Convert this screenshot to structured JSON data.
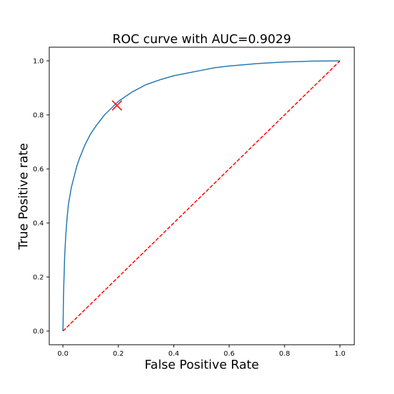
{
  "chart_data": {
    "type": "line",
    "title": "ROC curve with AUC=0.9029",
    "xlabel": "False Positive Rate",
    "ylabel": "True Positive rate",
    "xlim": [
      0,
      1
    ],
    "ylim": [
      0,
      1
    ],
    "x_ticks": [
      "0.0",
      "0.2",
      "0.4",
      "0.6",
      "0.8",
      "1.0"
    ],
    "y_ticks": [
      "0.0",
      "0.2",
      "0.4",
      "0.6",
      "0.8",
      "1.0"
    ],
    "grid": false,
    "legend": "none",
    "series": [
      {
        "style": "solid",
        "color": "#1f77b4",
        "x": [
          0.0,
          0.001,
          0.002,
          0.004,
          0.006,
          0.01,
          0.015,
          0.02,
          0.03,
          0.04,
          0.05,
          0.06,
          0.08,
          0.1,
          0.12,
          0.15,
          0.2,
          0.25,
          0.3,
          0.35,
          0.4,
          0.45,
          0.5,
          0.55,
          0.6,
          0.7,
          0.8,
          0.9,
          1.0
        ],
        "y": [
          0.0,
          0.05,
          0.13,
          0.2,
          0.27,
          0.35,
          0.42,
          0.47,
          0.53,
          0.57,
          0.61,
          0.64,
          0.69,
          0.73,
          0.76,
          0.8,
          0.85,
          0.885,
          0.912,
          0.93,
          0.945,
          0.955,
          0.965,
          0.975,
          0.981,
          0.99,
          0.996,
          0.999,
          1.0
        ]
      },
      {
        "style": "dashed",
        "color": "#ff0000",
        "x": [
          0,
          1
        ],
        "y": [
          0,
          1
        ]
      }
    ],
    "marker": {
      "shape": "x",
      "color": "#ff0000",
      "x": 0.195,
      "y": 0.835
    }
  }
}
